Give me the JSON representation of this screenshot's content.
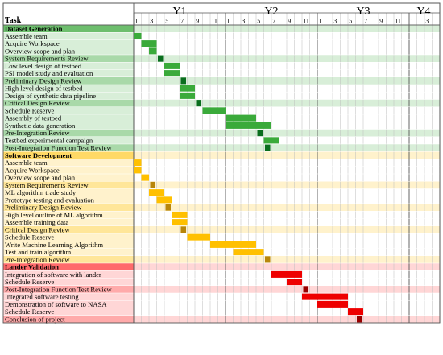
{
  "header": {
    "task_label": "Task",
    "years": [
      "Y1",
      "Y2",
      "Y3",
      "Y4"
    ],
    "month_ticks": [
      "1",
      "3",
      "5",
      "7",
      "9",
      "11"
    ],
    "y4_month_ticks": [
      "1",
      "3"
    ]
  },
  "colors": {
    "dataset_header": "#6dbe6d",
    "dataset_row_light": "#d8eed8",
    "dataset_row_dark": "#a9d9a9",
    "dataset_bar": "#3aaa3a",
    "dataset_milestone": "#0a6e1e",
    "software_header": "#ffd966",
    "software_row_light": "#fff2cc",
    "software_row_dark": "#ffe699",
    "software_bar": "#ffc000",
    "software_milestone": "#b8860b",
    "lander_header": "#ff6b6b",
    "lander_row_light": "#ffd6d6",
    "lander_row_dark": "#ffaaaa",
    "lander_bar": "#ee0000",
    "lander_milestone": "#990000"
  },
  "chart_data": {
    "type": "gantt",
    "time_unit": "month",
    "total_months": 40,
    "sections": [
      {
        "name": "Dataset Generation",
        "theme": "dataset",
        "tasks": [
          {
            "label": "Assemble team",
            "start": 1,
            "end": 1,
            "milestone": false
          },
          {
            "label": "Acquire Workspace",
            "start": 2,
            "end": 3,
            "milestone": false
          },
          {
            "label": "Overview scope and plan",
            "start": 3,
            "end": 3,
            "milestone": false
          },
          {
            "label": "System Requirements Review",
            "start": 4,
            "end": 4,
            "milestone": true
          },
          {
            "label": "Low level design of testbed",
            "start": 5,
            "end": 6,
            "milestone": false
          },
          {
            "label": "PSI model study and evaluation",
            "start": 5,
            "end": 6,
            "milestone": false
          },
          {
            "label": "Preliminary Design Review",
            "start": 7,
            "end": 7,
            "milestone": true
          },
          {
            "label": "High level design of testbed",
            "start": 7,
            "end": 8,
            "milestone": false
          },
          {
            "label": "Design of synthetic data pipeline",
            "start": 7,
            "end": 8,
            "milestone": false
          },
          {
            "label": "Critical Design Review",
            "start": 9,
            "end": 9,
            "milestone": true
          },
          {
            "label": "Schedule Reserve",
            "start": 10,
            "end": 12,
            "milestone": false
          },
          {
            "label": "Assembly of testbed",
            "start": 13,
            "end": 16,
            "milestone": false
          },
          {
            "label": "Synthetic data generation",
            "start": 13,
            "end": 18,
            "milestone": false
          },
          {
            "label": "Pre-Integration Review",
            "start": 17,
            "end": 17,
            "milestone": true
          },
          {
            "label": "Testbed experimental campaign",
            "start": 18,
            "end": 19,
            "milestone": false
          },
          {
            "label": "Post-Integration Function Test Review",
            "start": 18,
            "end": 18,
            "milestone": true
          }
        ]
      },
      {
        "name": "Software Development",
        "theme": "software",
        "tasks": [
          {
            "label": "Assemble team",
            "start": 1,
            "end": 1,
            "milestone": false
          },
          {
            "label": "Acquire Workspace",
            "start": 1,
            "end": 1,
            "milestone": false
          },
          {
            "label": "Overview scope and plan",
            "start": 2,
            "end": 2,
            "milestone": false
          },
          {
            "label": "System Requirements Review",
            "start": 3,
            "end": 3,
            "milestone": true
          },
          {
            "label": "ML algorithm trade study",
            "start": 3,
            "end": 4,
            "milestone": false
          },
          {
            "label": "Prototype testing and evaluation",
            "start": 4,
            "end": 5,
            "milestone": false
          },
          {
            "label": "Preliminary Design Review",
            "start": 5,
            "end": 5,
            "milestone": true
          },
          {
            "label": "High level outline of ML algorithm",
            "start": 6,
            "end": 7,
            "milestone": false
          },
          {
            "label": "Assemble training data",
            "start": 6,
            "end": 7,
            "milestone": false
          },
          {
            "label": "Critical Design Review",
            "start": 7,
            "end": 7,
            "milestone": true
          },
          {
            "label": "Schedule Reserve",
            "start": 8,
            "end": 10,
            "milestone": false
          },
          {
            "label": "Write Machine Learning Algorithm",
            "start": 11,
            "end": 16,
            "milestone": false
          },
          {
            "label": "Test and train algorithm",
            "start": 14,
            "end": 17,
            "milestone": false
          },
          {
            "label": "Pre-Integration Review",
            "start": 18,
            "end": 18,
            "milestone": true
          }
        ]
      },
      {
        "name": "Lander Validation",
        "theme": "lander",
        "tasks": [
          {
            "label": "Integration of software with lander",
            "start": 19,
            "end": 22,
            "milestone": false
          },
          {
            "label": "Schedule Reserve",
            "start": 21,
            "end": 22,
            "milestone": false
          },
          {
            "label": "Post-Integration Function Test Review",
            "start": 23,
            "end": 23,
            "milestone": true
          },
          {
            "label": "Integrated software testing",
            "start": 23,
            "end": 28,
            "milestone": false
          },
          {
            "label": "Demonstration of software to NASA",
            "start": 25,
            "end": 28,
            "milestone": false
          },
          {
            "label": "Schedule Reserve",
            "start": 29,
            "end": 30,
            "milestone": false
          },
          {
            "label": "Conclusion of project",
            "start": 30,
            "end": 30,
            "milestone": true
          }
        ]
      }
    ]
  }
}
